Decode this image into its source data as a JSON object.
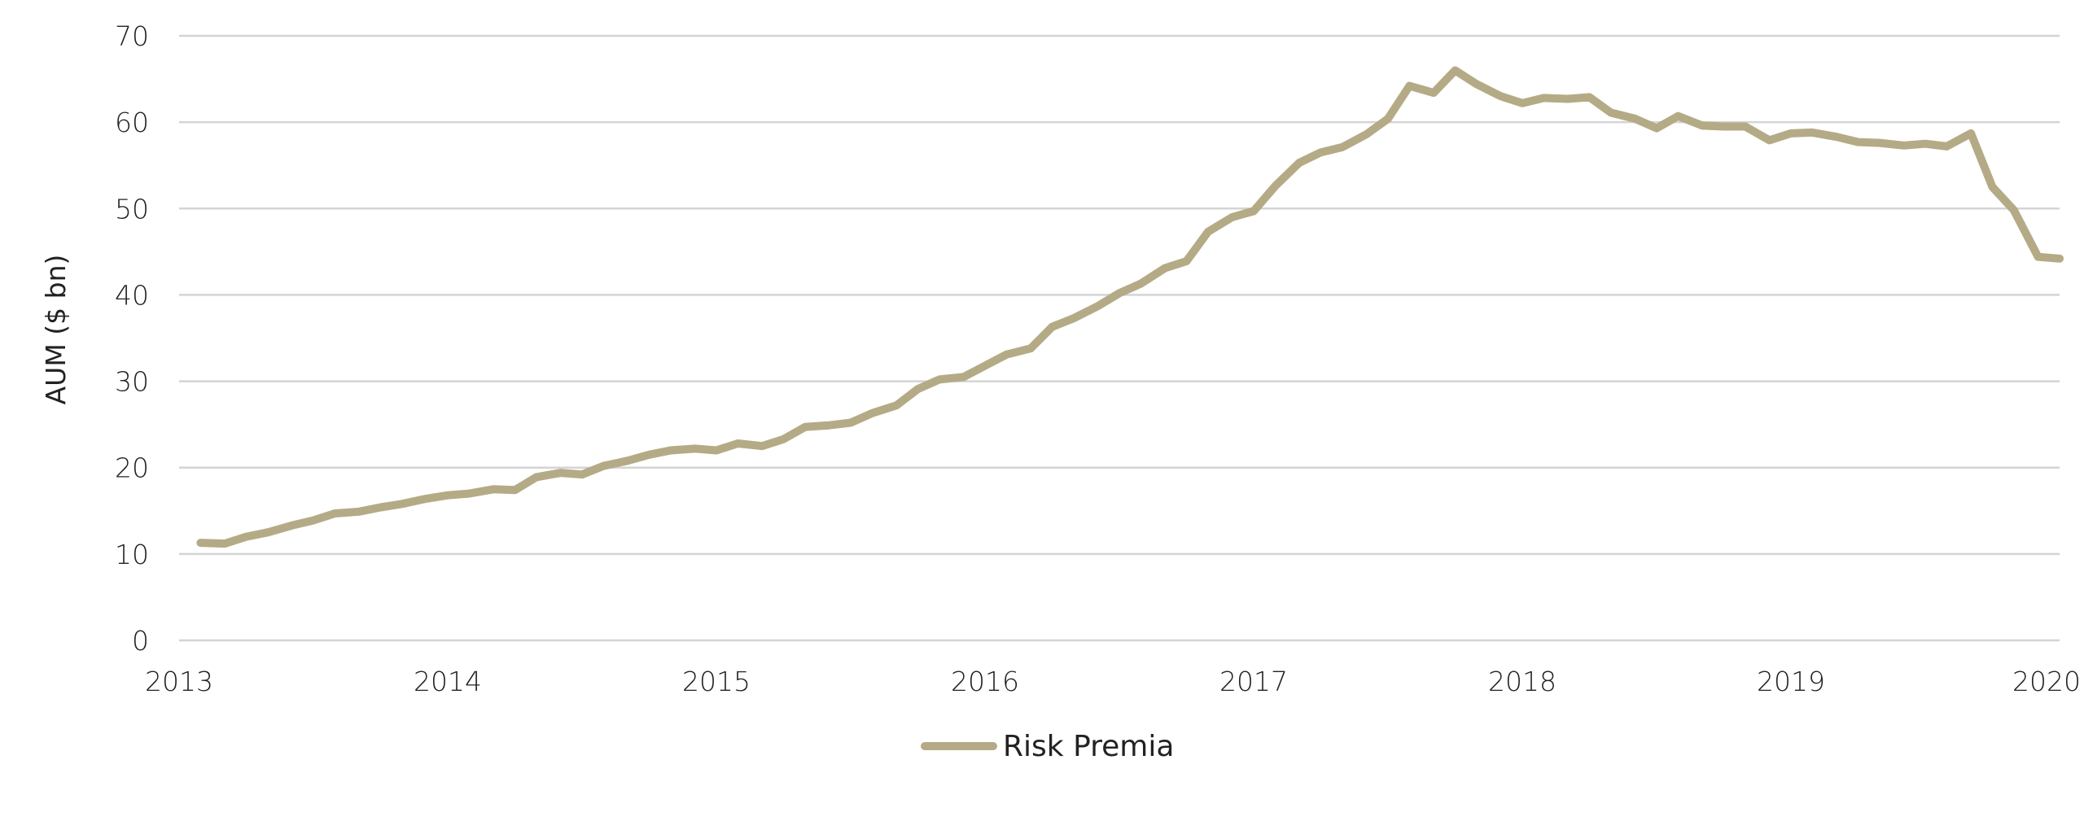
{
  "chart_data": {
    "type": "line",
    "title": "",
    "xlabel": "",
    "ylabel": "AUM ($ bn)",
    "ylim": [
      0,
      70
    ],
    "y_ticks": [
      "0",
      "10",
      "20",
      "30",
      "40",
      "50",
      "60",
      "70"
    ],
    "xlim": [
      2013,
      2020
    ],
    "x_ticks": [
      "2013",
      "2014",
      "2015",
      "2016",
      "2017",
      "2018",
      "2019",
      "2020"
    ],
    "grid": "horizontal",
    "legend_position": "bottom-center",
    "series": [
      {
        "name": "Risk Premia",
        "color": "#b4ab86",
        "x": [
          2013.08,
          2013.17,
          2013.25,
          2013.33,
          2013.42,
          2013.5,
          2013.58,
          2013.67,
          2013.75,
          2013.83,
          2013.92,
          2014.0,
          2014.08,
          2014.17,
          2014.25,
          2014.33,
          2014.42,
          2014.5,
          2014.58,
          2014.67,
          2014.75,
          2014.83,
          2014.92,
          2015.0,
          2015.08,
          2015.17,
          2015.25,
          2015.33,
          2015.42,
          2015.5,
          2015.58,
          2015.67,
          2015.75,
          2015.83,
          2015.92,
          2016.0,
          2016.08,
          2016.17,
          2016.25,
          2016.33,
          2016.42,
          2016.5,
          2016.58,
          2016.67,
          2016.75,
          2016.83,
          2016.92,
          2017.0,
          2017.08,
          2017.17,
          2017.25,
          2017.33,
          2017.42,
          2017.5,
          2017.58,
          2017.67,
          2017.75,
          2017.83,
          2017.92,
          2018.0,
          2018.08,
          2018.17,
          2018.25,
          2018.33,
          2018.42,
          2018.5,
          2018.58,
          2018.67,
          2018.75,
          2018.83,
          2018.92,
          2019.0,
          2019.08,
          2019.17,
          2019.25,
          2019.33,
          2019.42,
          2019.5,
          2019.58,
          2019.67,
          2019.75,
          2019.83,
          2019.92,
          2020.0
        ],
        "values": [
          11.3,
          11.2,
          12.0,
          12.5,
          13.3,
          13.9,
          14.7,
          14.9,
          15.4,
          15.8,
          16.4,
          16.8,
          17.0,
          17.5,
          17.4,
          18.9,
          19.4,
          19.2,
          20.2,
          20.8,
          21.5,
          22.0,
          22.2,
          22.0,
          22.8,
          22.5,
          23.3,
          24.7,
          24.9,
          25.2,
          26.3,
          27.2,
          29.1,
          30.2,
          30.5,
          31.8,
          33.1,
          33.8,
          36.3,
          37.3,
          38.7,
          40.2,
          41.3,
          43.1,
          43.9,
          47.3,
          49.0,
          49.7,
          52.6,
          55.3,
          56.5,
          57.1,
          58.6,
          60.4,
          64.2,
          63.4,
          66.0,
          64.4,
          63.0,
          62.2,
          62.8,
          62.7,
          62.9,
          61.1,
          60.4,
          59.3,
          60.7,
          59.6,
          59.5,
          59.5,
          57.9,
          58.7,
          58.8,
          58.3,
          57.7,
          57.6,
          57.3,
          57.5,
          57.2,
          58.7,
          52.5,
          49.8,
          44.4,
          44.2
        ]
      }
    ]
  }
}
